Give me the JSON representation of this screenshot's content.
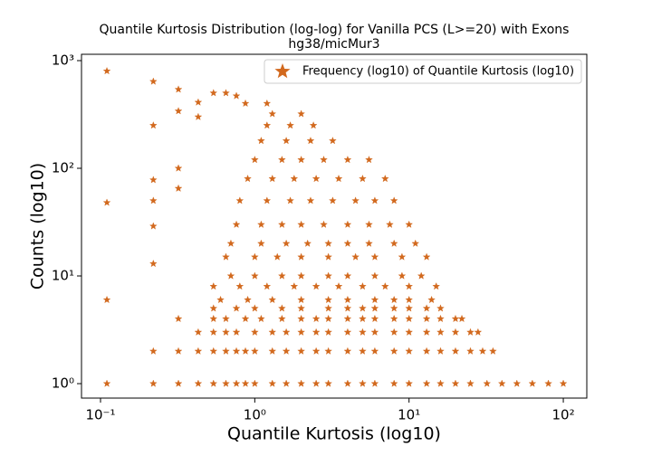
{
  "chart_data": {
    "type": "scatter",
    "title": "Quantile Kurtosis Distribution (log-log) for Vanilla PCS (L>=20) with Exons",
    "subtitle": "hg38/micMur3",
    "x_label": "Quantile Kurtosis (log10)",
    "y_label": "Counts (log10)",
    "x_scale": "log",
    "y_scale": "log",
    "legend": "upper right",
    "xlim": [
      0.0753,
      142
    ],
    "ylim": [
      0.734,
      1145
    ],
    "xticks": [
      {
        "value": 0.1,
        "label": "10⁻¹"
      },
      {
        "value": 1,
        "label": "10⁰"
      },
      {
        "value": 10,
        "label": "10¹"
      },
      {
        "value": 100,
        "label": "10²"
      }
    ],
    "yticks": [
      {
        "value": 1,
        "label": "10⁰"
      },
      {
        "value": 10,
        "label": "10¹"
      },
      {
        "value": 100,
        "label": "10²"
      },
      {
        "value": 1000,
        "label": "10³"
      }
    ],
    "x": [
      0.11,
      0.22,
      0.32,
      0.43,
      0.54,
      0.65,
      0.76,
      0.87,
      1,
      1.3,
      1.6,
      2,
      2.5,
      3,
      4,
      5,
      6,
      8,
      10,
      13,
      16,
      20,
      25,
      32,
      40,
      50,
      63,
      80,
      100,
      0.22,
      0.32,
      0.43,
      0.54,
      0.65,
      0.76,
      0.87,
      1,
      1.3,
      1.6,
      2,
      2.5,
      3,
      4,
      5,
      6,
      8,
      10,
      13,
      16,
      20,
      25,
      30,
      35,
      0.43,
      0.54,
      0.65,
      0.76,
      1,
      1.3,
      1.6,
      2,
      2.5,
      3,
      4,
      5,
      6,
      8,
      10,
      13,
      16,
      20,
      25,
      28,
      0.32,
      0.54,
      0.65,
      0.87,
      1.1,
      1.5,
      2,
      2.5,
      3,
      4,
      5,
      6,
      8,
      10,
      13,
      16,
      20,
      22,
      0.54,
      0.76,
      1,
      1.5,
      2,
      3,
      4,
      5,
      6,
      8,
      10,
      13,
      16,
      0.11,
      0.6,
      0.9,
      1.3,
      2,
      3,
      4,
      6,
      8,
      10,
      14,
      0.54,
      0.8,
      1.2,
      1.8,
      2.5,
      3.5,
      5,
      7,
      10,
      15,
      0.7,
      1,
      1.5,
      2,
      3,
      4,
      6,
      9,
      12,
      0.65,
      1,
      1.4,
      2,
      3,
      4.5,
      6,
      9,
      13,
      0.7,
      1.1,
      1.6,
      2.2,
      3,
      4,
      5.5,
      8,
      11,
      0.76,
      1.1,
      1.5,
      2,
      2.8,
      4,
      5.5,
      7.5,
      10,
      0.8,
      1.2,
      1.7,
      2.3,
      3.2,
      4.5,
      6,
      8,
      0.9,
      1.3,
      1.8,
      2.5,
      3.5,
      5,
      7,
      1,
      1.5,
      2,
      2.8,
      4,
      5.5,
      1.1,
      1.6,
      2.3,
      3.2,
      1.2,
      1.7,
      2.4,
      1.3,
      2,
      0.87,
      1.2,
      0.11,
      0.11,
      0.22,
      0.22,
      0.22,
      0.22,
      0.22,
      0.22,
      0.32,
      0.32,
      0.32,
      0.32,
      0.43,
      0.43,
      0.54,
      0.65,
      0.76
    ],
    "series": [
      {
        "name": "Frequency (log10) of Quantile Kurtosis (log10)",
        "color": "#d2691e",
        "values": [
          1,
          1,
          1,
          1,
          1,
          1,
          1,
          1,
          1,
          1,
          1,
          1,
          1,
          1,
          1,
          1,
          1,
          1,
          1,
          1,
          1,
          1,
          1,
          1,
          1,
          1,
          1,
          1,
          1,
          2,
          2,
          2,
          2,
          2,
          2,
          2,
          2,
          2,
          2,
          2,
          2,
          2,
          2,
          2,
          2,
          2,
          2,
          2,
          2,
          2,
          2,
          2,
          2,
          3,
          3,
          3,
          3,
          3,
          3,
          3,
          3,
          3,
          3,
          3,
          3,
          3,
          3,
          3,
          3,
          3,
          3,
          3,
          3,
          4,
          4,
          4,
          4,
          4,
          4,
          4,
          4,
          4,
          4,
          4,
          4,
          4,
          4,
          4,
          4,
          4,
          4,
          5,
          5,
          5,
          5,
          5,
          5,
          5,
          5,
          5,
          5,
          5,
          5,
          5,
          6,
          6,
          6,
          6,
          6,
          6,
          6,
          6,
          6,
          6,
          6,
          8,
          8,
          8,
          8,
          8,
          8,
          8,
          8,
          8,
          8,
          10,
          10,
          10,
          10,
          10,
          10,
          10,
          10,
          10,
          15,
          15,
          15,
          15,
          15,
          15,
          15,
          15,
          15,
          20,
          20,
          20,
          20,
          20,
          20,
          20,
          20,
          20,
          30,
          30,
          30,
          30,
          30,
          30,
          30,
          30,
          30,
          50,
          50,
          50,
          50,
          50,
          50,
          50,
          50,
          80,
          80,
          80,
          80,
          80,
          80,
          80,
          120,
          120,
          120,
          120,
          120,
          120,
          180,
          180,
          180,
          180,
          250,
          250,
          250,
          320,
          320,
          400,
          400,
          800,
          48,
          640,
          250,
          78,
          50,
          29,
          13,
          540,
          340,
          100,
          65,
          410,
          300,
          500,
          500,
          470
        ]
      }
    ]
  }
}
